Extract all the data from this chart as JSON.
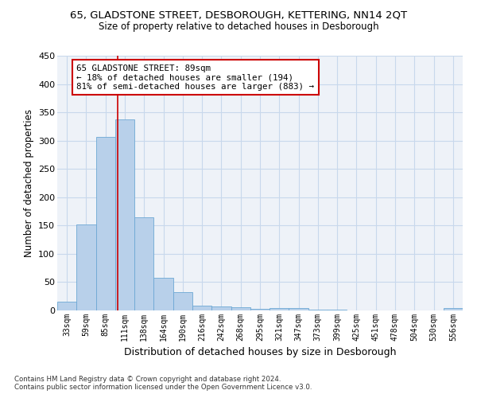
{
  "title_line1": "65, GLADSTONE STREET, DESBOROUGH, KETTERING, NN14 2QT",
  "title_line2": "Size of property relative to detached houses in Desborough",
  "xlabel": "Distribution of detached houses by size in Desborough",
  "ylabel": "Number of detached properties",
  "footnote1": "Contains HM Land Registry data © Crown copyright and database right 2024.",
  "footnote2": "Contains public sector information licensed under the Open Government Licence v3.0.",
  "bar_color": "#b8d0ea",
  "bar_edge_color": "#6da8d4",
  "grid_color": "#c8d8ec",
  "vline_color": "#cc0000",
  "annotation_box_color": "#cc0000",
  "bin_labels": [
    "33sqm",
    "59sqm",
    "85sqm",
    "111sqm",
    "138sqm",
    "164sqm",
    "190sqm",
    "216sqm",
    "242sqm",
    "268sqm",
    "295sqm",
    "321sqm",
    "347sqm",
    "373sqm",
    "399sqm",
    "425sqm",
    "451sqm",
    "478sqm",
    "504sqm",
    "530sqm",
    "556sqm"
  ],
  "bar_values": [
    15,
    152,
    306,
    338,
    165,
    57,
    33,
    9,
    7,
    5,
    3,
    4,
    4,
    2,
    1,
    0,
    0,
    0,
    0,
    0,
    4
  ],
  "vline_x": 2.64,
  "annotation_line1": "65 GLADSTONE STREET: 89sqm",
  "annotation_line2": "← 18% of detached houses are smaller (194)",
  "annotation_line3": "81% of semi-detached houses are larger (883) →",
  "ylim": [
    0,
    450
  ],
  "yticks": [
    0,
    50,
    100,
    150,
    200,
    250,
    300,
    350,
    400,
    450
  ],
  "background_color": "#eef2f8"
}
